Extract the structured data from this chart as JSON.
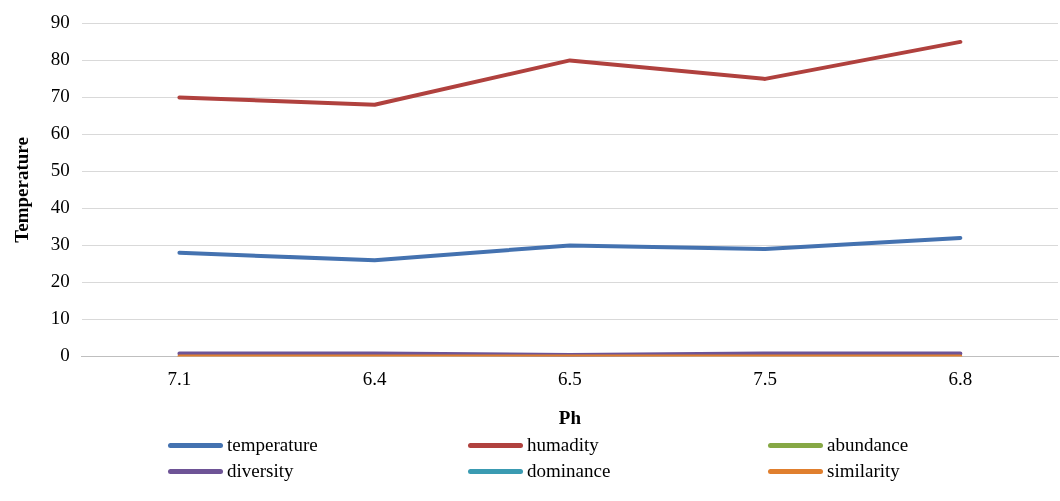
{
  "chart_data": {
    "type": "line",
    "xlabel": "Ph",
    "ylabel": "Temperature",
    "categories": [
      "7.1",
      "6.4",
      "6.5",
      "7.5",
      "6.8"
    ],
    "series": [
      {
        "name": "temperature",
        "color": "#4472b0",
        "values": [
          28,
          26,
          30,
          29,
          32
        ]
      },
      {
        "name": "humadity",
        "color": "#b0413e",
        "values": [
          70,
          68,
          80,
          75,
          85
        ]
      },
      {
        "name": "abundance",
        "color": "#86a845",
        "values": [
          null,
          null,
          null,
          null,
          null
        ]
      },
      {
        "name": "diversity",
        "color": "#6e5496",
        "values": [
          0.8,
          0.8,
          0.4,
          0.8,
          0.8
        ]
      },
      {
        "name": "dominance",
        "color": "#3a9bb2",
        "values": [
          null,
          null,
          null,
          null,
          null
        ]
      },
      {
        "name": "similarity",
        "color": "#e07f2e",
        "values": [
          0,
          0,
          0,
          0,
          0
        ]
      }
    ],
    "ylim": [
      0,
      90
    ],
    "yticks": [
      0,
      10,
      20,
      30,
      40,
      50,
      60,
      70,
      80,
      90
    ],
    "grid": "y",
    "legend": "bottom",
    "marker": "none",
    "line_style": "solid"
  }
}
